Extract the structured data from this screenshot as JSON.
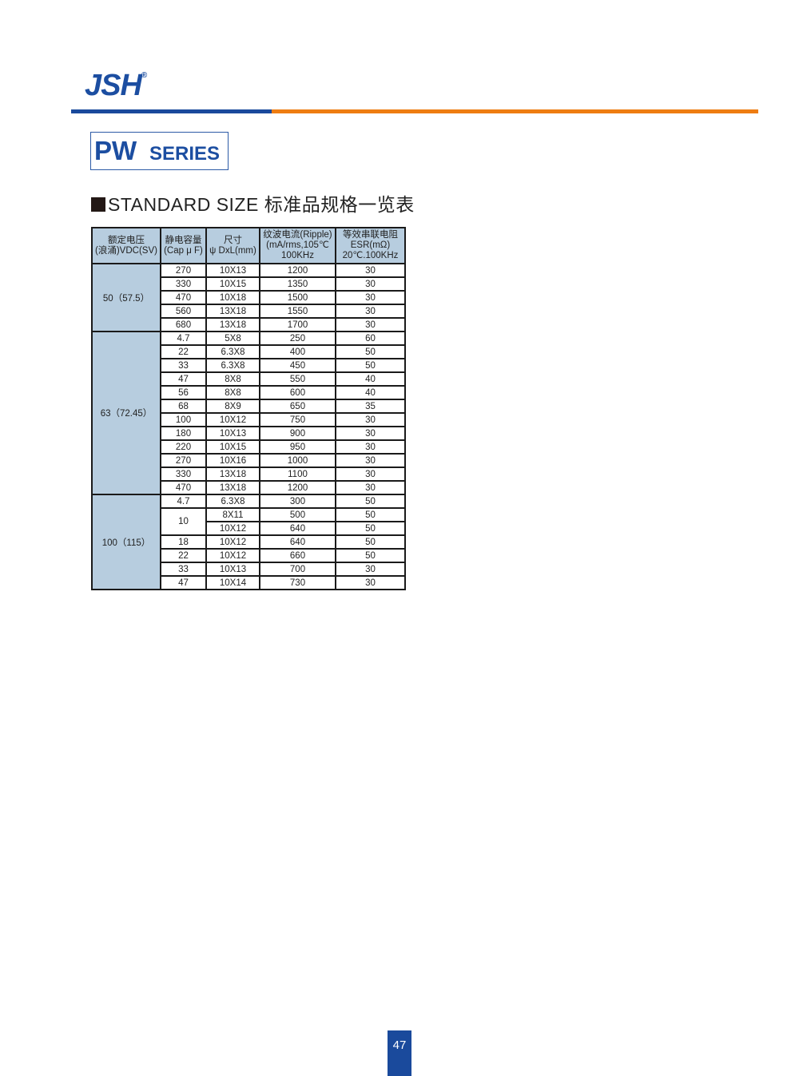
{
  "brand": {
    "logo": "JSH",
    "registered": "®",
    "colors": {
      "blue": "#1a4a9c",
      "orange": "#ee7d12",
      "header_fill": "#b7cddf"
    }
  },
  "series": {
    "prefix": "PW",
    "suffix": "SERIES"
  },
  "section_title": "STANDARD SIZE 标准品规格一览表",
  "table": {
    "headers": [
      [
        "额定电压",
        "(浪涌)VDC(SV)"
      ],
      [
        "静电容量",
        "(Cap  μ F)"
      ],
      [
        "尺寸",
        "ψ DxL(mm)"
      ],
      [
        "纹波电流(Ripple)",
        "(mA/rms,105℃",
        "100KHz"
      ],
      [
        "等效串联电阻",
        "ESR(mΩ)",
        "20℃.100KHz"
      ]
    ],
    "groups": [
      {
        "voltage": "50（57.5）",
        "rows": [
          {
            "cap": "270",
            "size": "10X13",
            "ripple": "1200",
            "esr": "30"
          },
          {
            "cap": "330",
            "size": "10X15",
            "ripple": "1350",
            "esr": "30"
          },
          {
            "cap": "470",
            "size": "10X18",
            "ripple": "1500",
            "esr": "30"
          },
          {
            "cap": "560",
            "size": "13X18",
            "ripple": "1550",
            "esr": "30"
          },
          {
            "cap": "680",
            "size": "13X18",
            "ripple": "1700",
            "esr": "30"
          }
        ]
      },
      {
        "voltage": "63（72.45）",
        "rows": [
          {
            "cap": "4.7",
            "size": "5X8",
            "ripple": "250",
            "esr": "60"
          },
          {
            "cap": "22",
            "size": "6.3X8",
            "ripple": "400",
            "esr": "50"
          },
          {
            "cap": "33",
            "size": "6.3X8",
            "ripple": "450",
            "esr": "50"
          },
          {
            "cap": "47",
            "size": "8X8",
            "ripple": "550",
            "esr": "40"
          },
          {
            "cap": "56",
            "size": "8X8",
            "ripple": "600",
            "esr": "40"
          },
          {
            "cap": "68",
            "size": "8X9",
            "ripple": "650",
            "esr": "35"
          },
          {
            "cap": "100",
            "size": "10X12",
            "ripple": "750",
            "esr": "30"
          },
          {
            "cap": "180",
            "size": "10X13",
            "ripple": "900",
            "esr": "30"
          },
          {
            "cap": "220",
            "size": "10X15",
            "ripple": "950",
            "esr": "30"
          },
          {
            "cap": "270",
            "size": "10X16",
            "ripple": "1000",
            "esr": "30"
          },
          {
            "cap": "330",
            "size": "13X18",
            "ripple": "1100",
            "esr": "30"
          },
          {
            "cap": "470",
            "size": "13X18",
            "ripple": "1200",
            "esr": "30"
          }
        ]
      },
      {
        "voltage": "100（115）",
        "rows": [
          {
            "cap": "4.7",
            "size": "6.3X8",
            "ripple": "300",
            "esr": "50"
          },
          {
            "cap": "10",
            "cap_rows": 2,
            "size": "8X11",
            "ripple": "500",
            "esr": "50"
          },
          {
            "size": "10X12",
            "ripple": "640",
            "esr": "50"
          },
          {
            "cap": "18",
            "size": "10X12",
            "ripple": "640",
            "esr": "50"
          },
          {
            "cap": "22",
            "size": "10X12",
            "ripple": "660",
            "esr": "50"
          },
          {
            "cap": "33",
            "size": "10X13",
            "ripple": "700",
            "esr": "30"
          },
          {
            "cap": "47",
            "size": "10X14",
            "ripple": "730",
            "esr": "30"
          }
        ]
      }
    ]
  },
  "page_number": "47"
}
